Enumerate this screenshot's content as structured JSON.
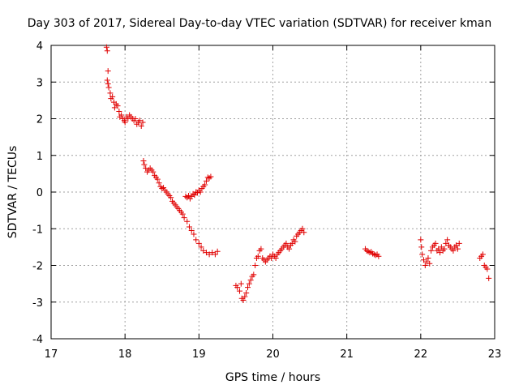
{
  "chart_data": {
    "type": "scatter",
    "title": "Day 303 of 2017, Sidereal Day-to-day VTEC variation (SDTVAR) for receiver kman",
    "xlabel": "GPS time / hours",
    "ylabel": "SDTVAR / TECUs",
    "xlim": [
      17,
      23
    ],
    "ylim": [
      -4,
      4
    ],
    "x_ticks": [
      17,
      18,
      19,
      20,
      21,
      22,
      23
    ],
    "y_ticks": [
      -4,
      -3,
      -2,
      -1,
      0,
      1,
      2,
      3,
      4
    ],
    "x_tick_labels": [
      "17",
      "18",
      "19",
      "20",
      "21",
      "22",
      "23"
    ],
    "y_tick_labels": [
      "-4",
      "-3",
      "-2",
      "-1",
      "0",
      "1",
      "2",
      "3",
      "4"
    ],
    "grid": true,
    "marker": "+",
    "color": "#e00000",
    "series": [
      {
        "name": "kman",
        "points": [
          [
            17.75,
            3.95
          ],
          [
            17.76,
            3.85
          ],
          [
            17.77,
            3.3
          ],
          [
            17.76,
            3.05
          ],
          [
            17.77,
            2.95
          ],
          [
            17.78,
            2.85
          ],
          [
            17.8,
            2.7
          ],
          [
            17.81,
            2.55
          ],
          [
            17.83,
            2.6
          ],
          [
            17.85,
            2.45
          ],
          [
            17.86,
            2.3
          ],
          [
            17.88,
            2.4
          ],
          [
            17.9,
            2.35
          ],
          [
            17.92,
            2.2
          ],
          [
            17.93,
            2.05
          ],
          [
            17.95,
            2.1
          ],
          [
            17.97,
            2.0
          ],
          [
            17.99,
            1.95
          ],
          [
            18.0,
            1.9
          ],
          [
            18.02,
            2.05
          ],
          [
            18.04,
            2.0
          ],
          [
            18.06,
            2.1
          ],
          [
            18.08,
            2.05
          ],
          [
            18.1,
            2.0
          ],
          [
            18.12,
            1.95
          ],
          [
            18.14,
            2.0
          ],
          [
            18.16,
            1.85
          ],
          [
            18.18,
            1.9
          ],
          [
            18.2,
            1.95
          ],
          [
            18.22,
            1.8
          ],
          [
            18.24,
            1.9
          ],
          [
            18.25,
            0.85
          ],
          [
            18.26,
            0.75
          ],
          [
            18.28,
            0.65
          ],
          [
            18.3,
            0.55
          ],
          [
            18.32,
            0.6
          ],
          [
            18.34,
            0.65
          ],
          [
            18.36,
            0.6
          ],
          [
            18.38,
            0.55
          ],
          [
            18.4,
            0.45
          ],
          [
            18.42,
            0.4
          ],
          [
            18.44,
            0.35
          ],
          [
            18.46,
            0.25
          ],
          [
            18.48,
            0.15
          ],
          [
            18.5,
            0.1
          ],
          [
            18.52,
            0.12
          ],
          [
            18.54,
            0.05
          ],
          [
            18.56,
            0.0
          ],
          [
            18.58,
            -0.05
          ],
          [
            18.6,
            -0.1
          ],
          [
            18.62,
            -0.15
          ],
          [
            18.64,
            -0.25
          ],
          [
            18.66,
            -0.3
          ],
          [
            18.68,
            -0.35
          ],
          [
            18.7,
            -0.4
          ],
          [
            18.72,
            -0.45
          ],
          [
            18.74,
            -0.5
          ],
          [
            18.76,
            -0.55
          ],
          [
            18.78,
            -0.6
          ],
          [
            18.8,
            -0.7
          ],
          [
            18.82,
            -0.12
          ],
          [
            18.84,
            -0.15
          ],
          [
            18.86,
            -0.1
          ],
          [
            18.88,
            -0.18
          ],
          [
            18.9,
            -0.12
          ],
          [
            18.92,
            -0.05
          ],
          [
            18.94,
            -0.08
          ],
          [
            18.96,
            0.0
          ],
          [
            18.98,
            -0.02
          ],
          [
            19.0,
            0.05
          ],
          [
            19.02,
            0.0
          ],
          [
            19.04,
            0.1
          ],
          [
            19.06,
            0.15
          ],
          [
            19.08,
            0.2
          ],
          [
            19.1,
            0.3
          ],
          [
            19.12,
            0.4
          ],
          [
            19.14,
            0.38
          ],
          [
            19.16,
            0.42
          ],
          [
            18.84,
            -0.8
          ],
          [
            18.87,
            -0.95
          ],
          [
            18.9,
            -1.05
          ],
          [
            18.93,
            -1.15
          ],
          [
            18.96,
            -1.3
          ],
          [
            19.0,
            -1.4
          ],
          [
            19.03,
            -1.5
          ],
          [
            19.06,
            -1.6
          ],
          [
            19.1,
            -1.65
          ],
          [
            19.14,
            -1.7
          ],
          [
            19.18,
            -1.65
          ],
          [
            19.22,
            -1.7
          ],
          [
            19.25,
            -1.62
          ],
          [
            19.5,
            -2.55
          ],
          [
            19.52,
            -2.6
          ],
          [
            19.55,
            -2.7
          ],
          [
            19.57,
            -2.5
          ],
          [
            19.58,
            -2.9
          ],
          [
            19.6,
            -2.95
          ],
          [
            19.62,
            -2.85
          ],
          [
            19.64,
            -2.75
          ],
          [
            19.66,
            -2.6
          ],
          [
            19.68,
            -2.5
          ],
          [
            19.7,
            -2.4
          ],
          [
            19.72,
            -2.3
          ],
          [
            19.74,
            -2.25
          ],
          [
            19.76,
            -2.0
          ],
          [
            19.78,
            -1.8
          ],
          [
            19.8,
            -1.75
          ],
          [
            19.82,
            -1.6
          ],
          [
            19.84,
            -1.55
          ],
          [
            19.86,
            -1.8
          ],
          [
            19.88,
            -1.85
          ],
          [
            19.9,
            -1.9
          ],
          [
            19.92,
            -1.85
          ],
          [
            19.94,
            -1.8
          ],
          [
            19.96,
            -1.75
          ],
          [
            19.98,
            -1.8
          ],
          [
            20.0,
            -1.7
          ],
          [
            20.02,
            -1.75
          ],
          [
            20.04,
            -1.8
          ],
          [
            20.06,
            -1.7
          ],
          [
            20.08,
            -1.65
          ],
          [
            20.1,
            -1.6
          ],
          [
            20.12,
            -1.55
          ],
          [
            20.14,
            -1.5
          ],
          [
            20.16,
            -1.45
          ],
          [
            20.18,
            -1.4
          ],
          [
            20.2,
            -1.5
          ],
          [
            20.22,
            -1.55
          ],
          [
            20.24,
            -1.45
          ],
          [
            20.26,
            -1.4
          ],
          [
            20.28,
            -1.3
          ],
          [
            20.3,
            -1.35
          ],
          [
            20.32,
            -1.2
          ],
          [
            20.34,
            -1.15
          ],
          [
            20.36,
            -1.1
          ],
          [
            20.38,
            -1.05
          ],
          [
            20.4,
            -1.0
          ],
          [
            20.42,
            -1.1
          ],
          [
            21.25,
            -1.55
          ],
          [
            21.27,
            -1.6
          ],
          [
            21.29,
            -1.62
          ],
          [
            21.31,
            -1.65
          ],
          [
            21.33,
            -1.63
          ],
          [
            21.35,
            -1.68
          ],
          [
            21.37,
            -1.7
          ],
          [
            21.39,
            -1.72
          ],
          [
            21.41,
            -1.7
          ],
          [
            21.43,
            -1.75
          ],
          [
            22.0,
            -1.3
          ],
          [
            22.01,
            -1.5
          ],
          [
            22.02,
            -1.7
          ],
          [
            22.04,
            -1.85
          ],
          [
            22.06,
            -2.0
          ],
          [
            22.08,
            -1.9
          ],
          [
            22.1,
            -1.8
          ],
          [
            22.12,
            -1.95
          ],
          [
            22.14,
            -1.6
          ],
          [
            22.16,
            -1.5
          ],
          [
            22.18,
            -1.45
          ],
          [
            22.2,
            -1.4
          ],
          [
            22.22,
            -1.6
          ],
          [
            22.24,
            -1.55
          ],
          [
            22.26,
            -1.65
          ],
          [
            22.28,
            -1.5
          ],
          [
            22.3,
            -1.6
          ],
          [
            22.32,
            -1.55
          ],
          [
            22.34,
            -1.4
          ],
          [
            22.36,
            -1.3
          ],
          [
            22.38,
            -1.45
          ],
          [
            22.4,
            -1.5
          ],
          [
            22.42,
            -1.55
          ],
          [
            22.44,
            -1.6
          ],
          [
            22.46,
            -1.5
          ],
          [
            22.48,
            -1.45
          ],
          [
            22.5,
            -1.55
          ],
          [
            22.52,
            -1.4
          ],
          [
            22.8,
            -1.8
          ],
          [
            22.82,
            -1.75
          ],
          [
            22.84,
            -1.7
          ],
          [
            22.86,
            -2.0
          ],
          [
            22.88,
            -2.05
          ],
          [
            22.9,
            -2.1
          ],
          [
            22.92,
            -2.35
          ]
        ]
      }
    ]
  }
}
